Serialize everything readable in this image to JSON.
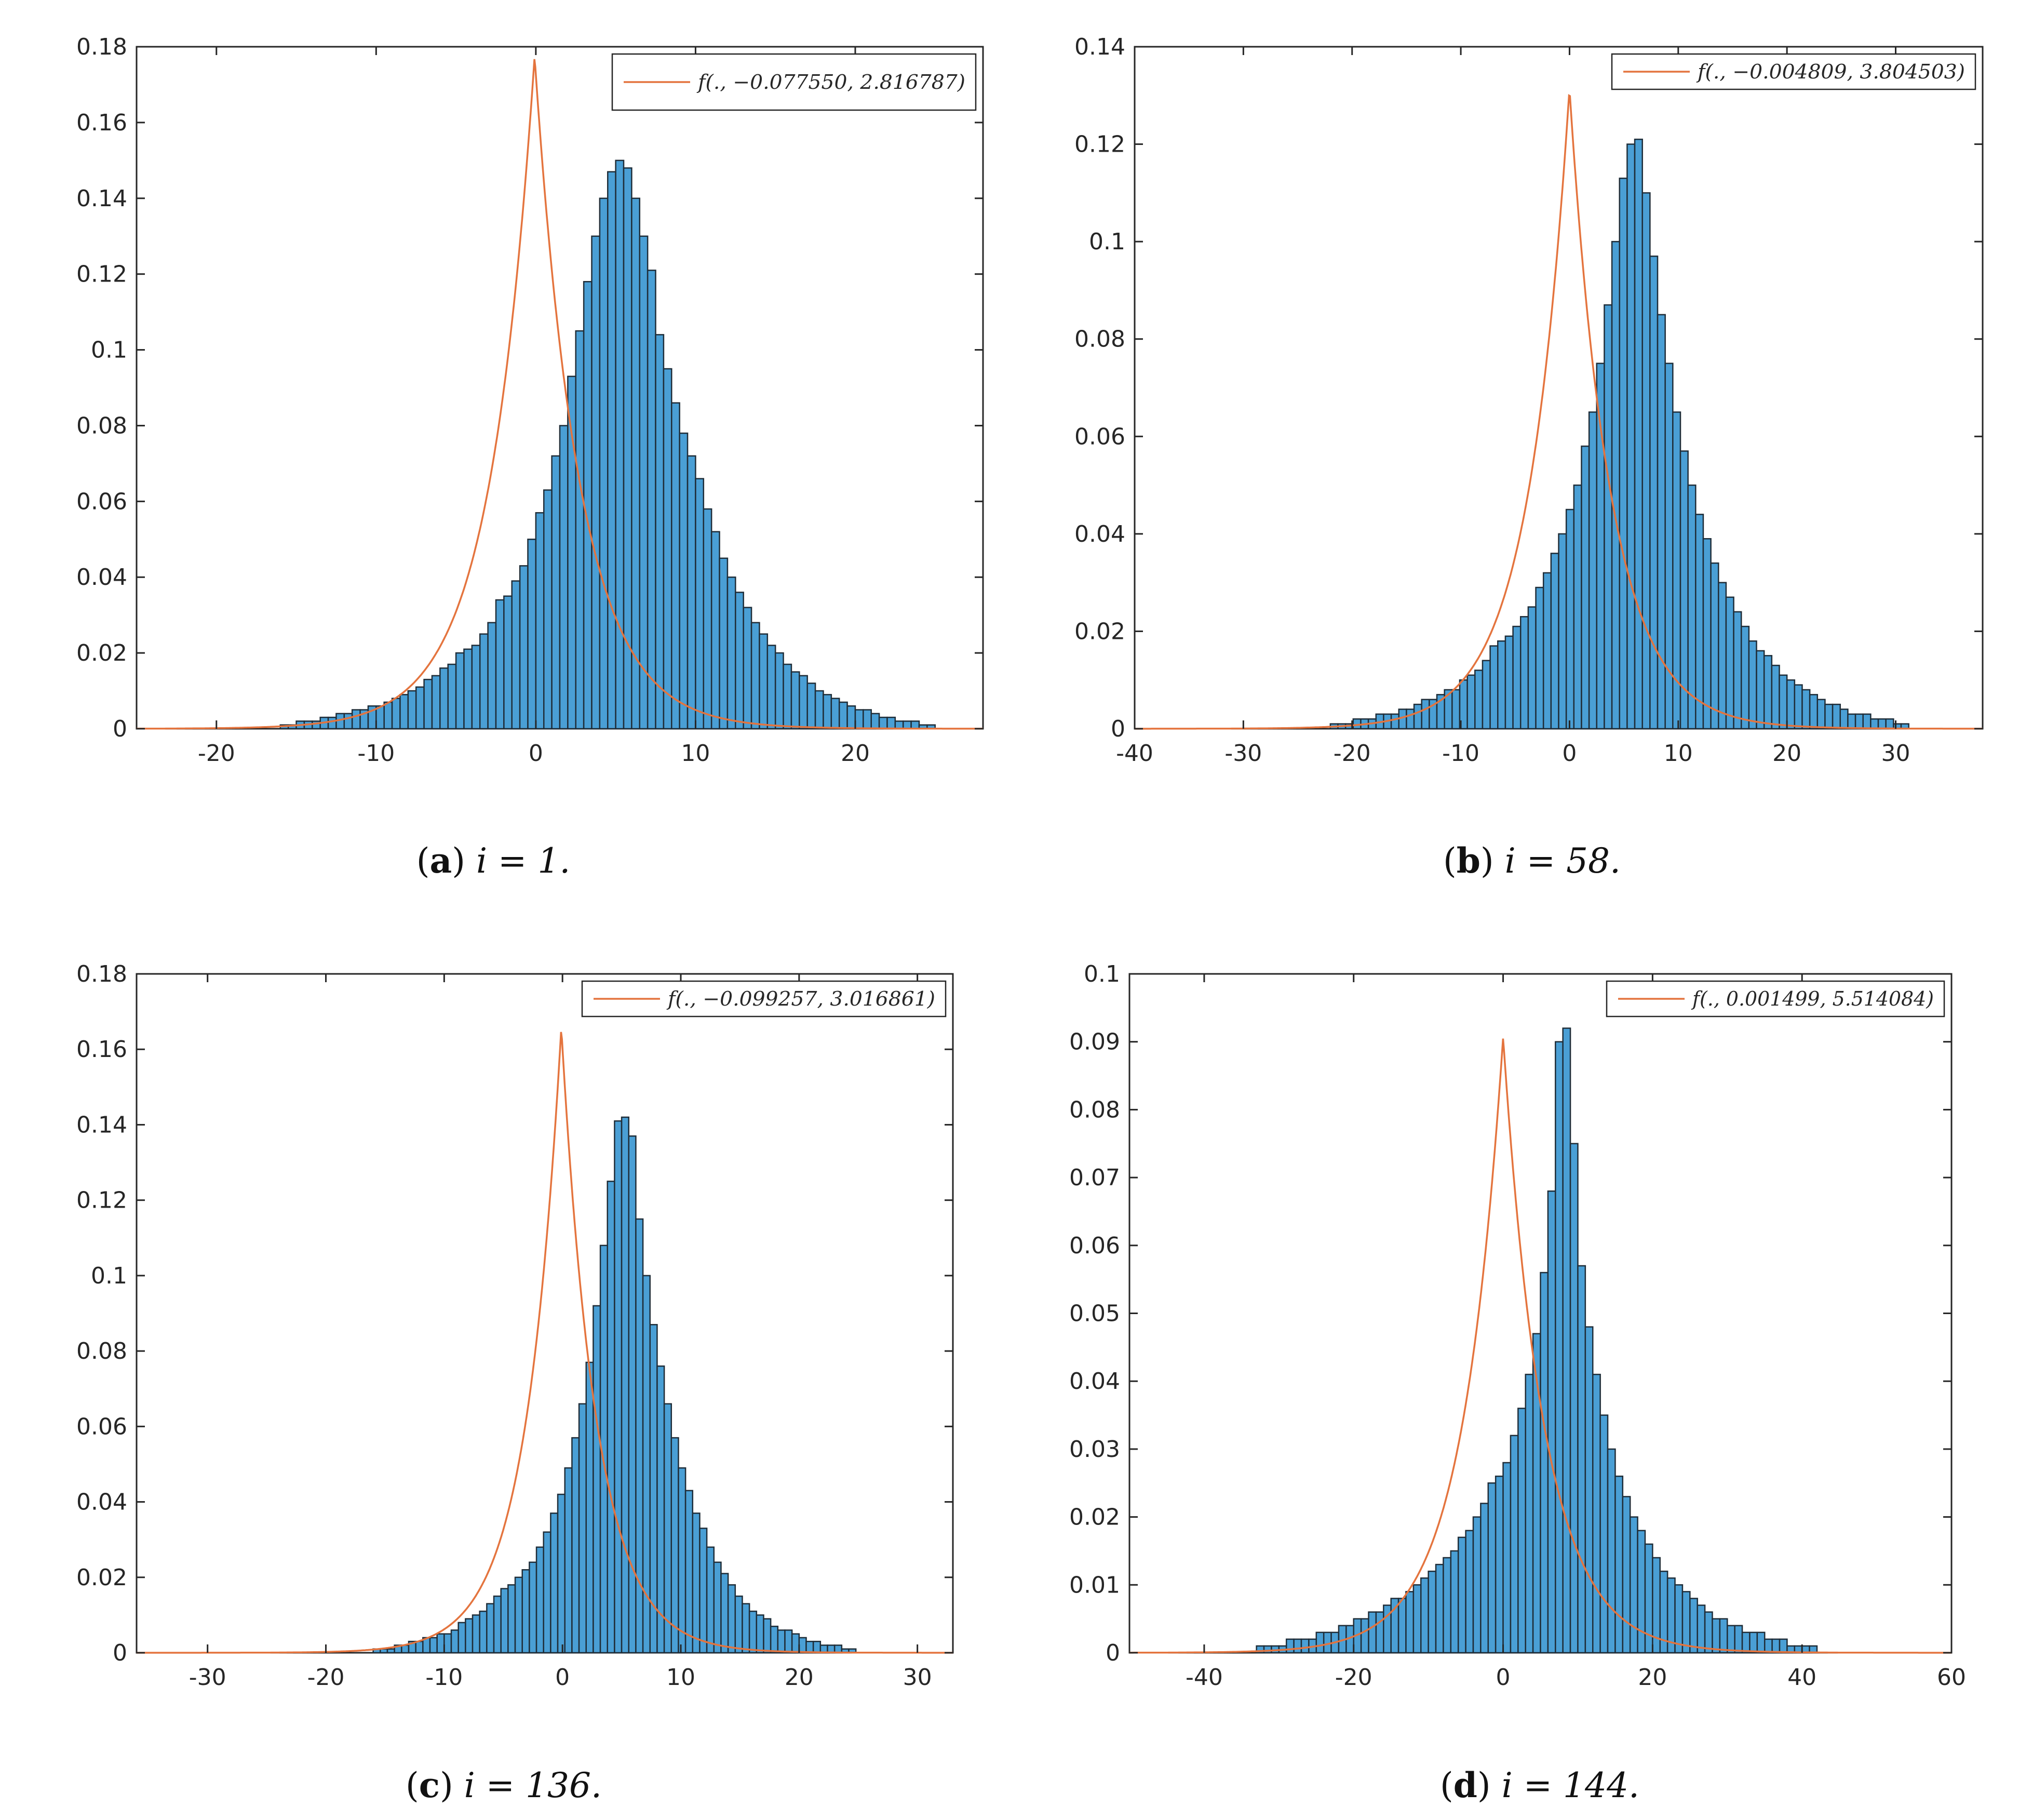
{
  "colors": {
    "bar_fill": "#4a9fd5",
    "bar_edge": "#1f2d38",
    "curve": "#e4743e",
    "axis": "#262626"
  },
  "chart_data": [
    {
      "type": "bar",
      "caption": {
        "letter": "a",
        "text": "i = 1."
      },
      "legend": "f(., −0.077550, 2.816787)",
      "legend_position": "top-right",
      "mu": -0.07755,
      "b": 2.816787,
      "xlim": [
        -25,
        28
      ],
      "ylim": [
        0,
        0.18
      ],
      "xticks": [
        -20,
        -10,
        0,
        10,
        20
      ],
      "xtick_labels": [
        "-20",
        "-10",
        "0",
        "10",
        "20"
      ],
      "yticks": [
        0,
        0.02,
        0.04,
        0.06,
        0.08,
        0.1,
        0.12,
        0.14,
        0.16,
        0.18
      ],
      "ytick_labels": [
        "0",
        "0.02",
        "0.04",
        "0.06",
        "0.08",
        "0.1",
        "0.12",
        "0.14",
        "0.16",
        "0.18"
      ],
      "bin_start": -16,
      "bin_width": 0.5,
      "values": [
        0.001,
        0.001,
        0.002,
        0.002,
        0.002,
        0.003,
        0.003,
        0.004,
        0.004,
        0.005,
        0.005,
        0.006,
        0.006,
        0.007,
        0.008,
        0.009,
        0.01,
        0.011,
        0.013,
        0.014,
        0.016,
        0.017,
        0.02,
        0.021,
        0.022,
        0.025,
        0.028,
        0.034,
        0.035,
        0.039,
        0.043,
        0.05,
        0.057,
        0.063,
        0.072,
        0.08,
        0.093,
        0.105,
        0.118,
        0.13,
        0.14,
        0.147,
        0.15,
        0.148,
        0.14,
        0.13,
        0.121,
        0.104,
        0.095,
        0.086,
        0.078,
        0.072,
        0.066,
        0.058,
        0.052,
        0.045,
        0.04,
        0.036,
        0.032,
        0.028,
        0.025,
        0.022,
        0.02,
        0.017,
        0.015,
        0.014,
        0.012,
        0.01,
        0.009,
        0.008,
        0.007,
        0.006,
        0.005,
        0.005,
        0.004,
        0.003,
        0.003,
        0.002,
        0.002,
        0.002,
        0.001,
        0.001
      ]
    },
    {
      "type": "bar",
      "caption": {
        "letter": "b",
        "text": "i = 58."
      },
      "legend": "f(., −0.004809, 3.804503)",
      "legend_position": "top-right",
      "mu": -0.004809,
      "b": 3.804503,
      "xlim": [
        -40,
        38
      ],
      "ylim": [
        0,
        0.14
      ],
      "xticks": [
        -40,
        -30,
        -20,
        -10,
        0,
        10,
        20,
        30
      ],
      "xtick_labels": [
        "-40",
        "-30",
        "-20",
        "-10",
        "0",
        "10",
        "20",
        "30"
      ],
      "yticks": [
        0,
        0.02,
        0.04,
        0.06,
        0.08,
        0.1,
        0.12,
        0.14
      ],
      "ytick_labels": [
        "0",
        "0.02",
        "0.04",
        "0.06",
        "0.08",
        "0.1",
        "0.12",
        "0.14"
      ],
      "bin_start": -22,
      "bin_width": 0.7,
      "values": [
        0.001,
        0.001,
        0.001,
        0.002,
        0.002,
        0.002,
        0.003,
        0.003,
        0.003,
        0.004,
        0.004,
        0.005,
        0.006,
        0.006,
        0.007,
        0.008,
        0.008,
        0.01,
        0.011,
        0.012,
        0.014,
        0.017,
        0.018,
        0.019,
        0.021,
        0.023,
        0.025,
        0.029,
        0.032,
        0.036,
        0.04,
        0.045,
        0.05,
        0.058,
        0.065,
        0.075,
        0.087,
        0.1,
        0.113,
        0.12,
        0.121,
        0.11,
        0.097,
        0.085,
        0.075,
        0.065,
        0.057,
        0.05,
        0.044,
        0.039,
        0.034,
        0.03,
        0.027,
        0.024,
        0.021,
        0.018,
        0.016,
        0.015,
        0.013,
        0.011,
        0.01,
        0.009,
        0.008,
        0.007,
        0.006,
        0.005,
        0.005,
        0.004,
        0.003,
        0.003,
        0.003,
        0.002,
        0.002,
        0.002,
        0.001,
        0.001
      ]
    },
    {
      "type": "bar",
      "caption": {
        "letter": "c",
        "text": "i = 136."
      },
      "legend": "f(., −0.099257, 3.016861)",
      "legend_position": "top-right",
      "mu": -0.099257,
      "b": 3.016861,
      "xlim": [
        -36,
        33
      ],
      "ylim": [
        0,
        0.18
      ],
      "xticks": [
        -30,
        -20,
        -10,
        0,
        10,
        20,
        30
      ],
      "xtick_labels": [
        "-30",
        "-20",
        "-10",
        "0",
        "10",
        "20",
        "30"
      ],
      "yticks": [
        0,
        0.02,
        0.04,
        0.06,
        0.08,
        0.1,
        0.12,
        0.14,
        0.16,
        0.18
      ],
      "ytick_labels": [
        "0",
        "0.02",
        "0.04",
        "0.06",
        "0.08",
        "0.1",
        "0.12",
        "0.14",
        "0.16",
        "0.18"
      ],
      "bin_start": -16,
      "bin_width": 0.6,
      "values": [
        0.001,
        0.001,
        0.001,
        0.002,
        0.002,
        0.003,
        0.003,
        0.004,
        0.004,
        0.005,
        0.005,
        0.006,
        0.008,
        0.009,
        0.01,
        0.011,
        0.013,
        0.015,
        0.017,
        0.018,
        0.02,
        0.022,
        0.024,
        0.028,
        0.032,
        0.037,
        0.042,
        0.049,
        0.057,
        0.066,
        0.077,
        0.092,
        0.108,
        0.125,
        0.141,
        0.142,
        0.137,
        0.115,
        0.1,
        0.087,
        0.076,
        0.066,
        0.057,
        0.049,
        0.043,
        0.037,
        0.033,
        0.028,
        0.024,
        0.021,
        0.018,
        0.015,
        0.013,
        0.011,
        0.01,
        0.009,
        0.007,
        0.006,
        0.006,
        0.005,
        0.004,
        0.003,
        0.003,
        0.002,
        0.002,
        0.002,
        0.001,
        0.001
      ]
    },
    {
      "type": "bar",
      "caption": {
        "letter": "d",
        "text": "i = 144."
      },
      "legend": "f(., 0.001499, 5.514084)",
      "legend_position": "top-right",
      "mu": 0.001499,
      "b": 5.514084,
      "xlim": [
        -50,
        60
      ],
      "ylim": [
        0,
        0.1
      ],
      "xticks": [
        -40,
        -20,
        0,
        20,
        40,
        60
      ],
      "xtick_labels": [
        "-40",
        "-20",
        "0",
        "20",
        "40",
        "60"
      ],
      "yticks": [
        0,
        0.01,
        0.02,
        0.03,
        0.04,
        0.05,
        0.06,
        0.07,
        0.08,
        0.09,
        0.1
      ],
      "ytick_labels": [
        "0",
        "0.01",
        "0.02",
        "0.03",
        "0.04",
        "0.05",
        "0.06",
        "0.07",
        "0.08",
        "0.09",
        "0.1"
      ],
      "bin_start": -33,
      "bin_width": 1.0,
      "values": [
        0.001,
        0.001,
        0.001,
        0.001,
        0.002,
        0.002,
        0.002,
        0.002,
        0.003,
        0.003,
        0.003,
        0.004,
        0.004,
        0.005,
        0.005,
        0.006,
        0.006,
        0.007,
        0.008,
        0.008,
        0.009,
        0.01,
        0.011,
        0.012,
        0.013,
        0.014,
        0.015,
        0.017,
        0.018,
        0.02,
        0.022,
        0.025,
        0.026,
        0.028,
        0.032,
        0.036,
        0.041,
        0.047,
        0.056,
        0.068,
        0.09,
        0.092,
        0.075,
        0.057,
        0.048,
        0.041,
        0.035,
        0.03,
        0.026,
        0.023,
        0.02,
        0.018,
        0.016,
        0.014,
        0.012,
        0.011,
        0.01,
        0.009,
        0.008,
        0.007,
        0.006,
        0.005,
        0.005,
        0.004,
        0.004,
        0.003,
        0.003,
        0.003,
        0.002,
        0.002,
        0.002,
        0.001,
        0.001,
        0.001,
        0.001
      ]
    }
  ]
}
